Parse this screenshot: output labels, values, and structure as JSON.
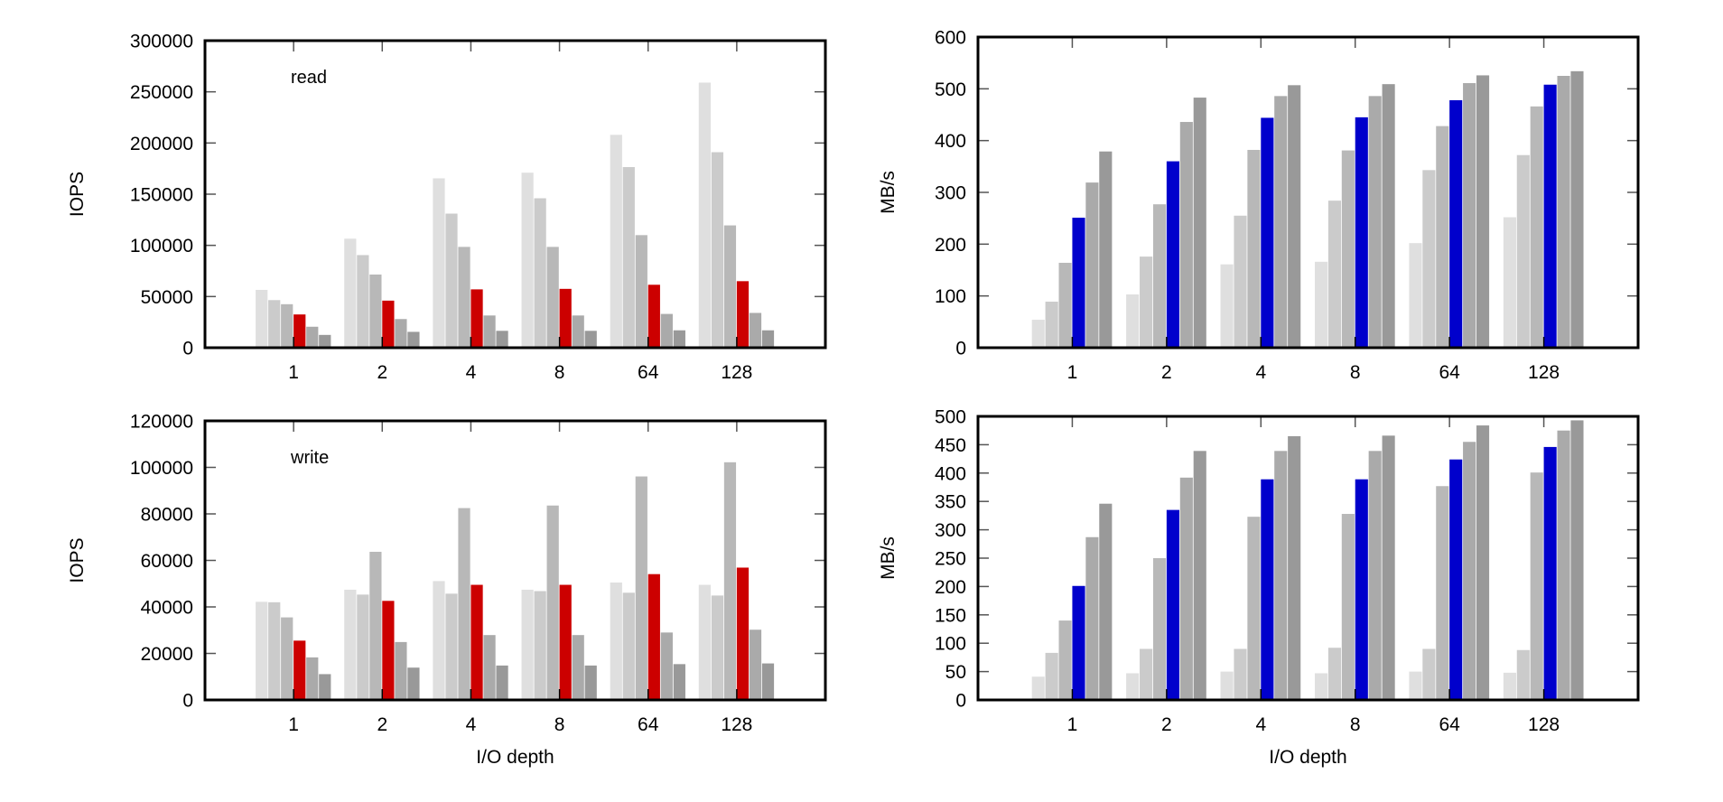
{
  "bar_colors": [
    "#dfdfdf",
    "#cbcbcb",
    "#b8b8b8",
    "HIGHLIGHT",
    "#aaaaaa",
    "#999999"
  ],
  "chart_data": [
    {
      "id": "read-iops",
      "type": "bar",
      "title": "",
      "annotation": "read",
      "xlabel": "",
      "ylabel": "IOPS",
      "ylim": [
        0,
        300000
      ],
      "yticks": [
        "0",
        "50000",
        "100000",
        "150000",
        "200000",
        "250000",
        "300000"
      ],
      "ytick_values": [
        0,
        50000,
        100000,
        150000,
        200000,
        250000,
        300000
      ],
      "categories": [
        "1",
        "2",
        "4",
        "8",
        "64",
        "128"
      ],
      "highlight_color": "#cc0000",
      "highlight_index": 3,
      "grid": false,
      "series": [
        {
          "name": "series-1",
          "values": [
            56500,
            106500,
            165500,
            171000,
            208000,
            259000
          ]
        },
        {
          "name": "series-2",
          "values": [
            46500,
            90500,
            131000,
            146000,
            176500,
            191000
          ]
        },
        {
          "name": "series-3",
          "values": [
            42500,
            71500,
            98500,
            98500,
            110000,
            119500
          ]
        },
        {
          "name": "series-4",
          "values": [
            32500,
            46000,
            57000,
            57500,
            61500,
            65000
          ]
        },
        {
          "name": "series-5",
          "values": [
            20500,
            28000,
            31500,
            31500,
            33000,
            34000
          ]
        },
        {
          "name": "series-6",
          "values": [
            12500,
            15500,
            16500,
            16500,
            17000,
            17000
          ]
        }
      ]
    },
    {
      "id": "read-mbps",
      "type": "bar",
      "title": "",
      "annotation": "",
      "xlabel": "",
      "ylabel": "MB/s",
      "ylim": [
        0,
        600
      ],
      "yticks": [
        "0",
        "100",
        "200",
        "300",
        "400",
        "500",
        "600"
      ],
      "ytick_values": [
        0,
        100,
        200,
        300,
        400,
        500,
        600
      ],
      "categories": [
        "1",
        "2",
        "4",
        "8",
        "64",
        "128"
      ],
      "highlight_color": "#0000cc",
      "highlight_index": 3,
      "grid": false,
      "series": [
        {
          "name": "series-1",
          "values": [
            54,
            103,
            161,
            166,
            202,
            252
          ]
        },
        {
          "name": "series-2",
          "values": [
            89,
            176,
            255,
            284,
            343,
            372
          ]
        },
        {
          "name": "series-3",
          "values": [
            164,
            277,
            382,
            381,
            428,
            466
          ]
        },
        {
          "name": "series-4",
          "values": [
            251,
            360,
            444,
            445,
            478,
            508
          ]
        },
        {
          "name": "series-5",
          "values": [
            319,
            436,
            486,
            486,
            511,
            525
          ]
        },
        {
          "name": "series-6",
          "values": [
            379,
            483,
            507,
            509,
            526,
            534
          ]
        }
      ]
    },
    {
      "id": "write-iops",
      "type": "bar",
      "title": "",
      "annotation": "write",
      "xlabel": "I/O depth",
      "ylabel": "IOPS",
      "ylim": [
        0,
        120000
      ],
      "yticks": [
        "0",
        "20000",
        "40000",
        "60000",
        "80000",
        "100000",
        "120000"
      ],
      "ytick_values": [
        0,
        20000,
        40000,
        60000,
        80000,
        100000,
        120000
      ],
      "categories": [
        "1",
        "2",
        "4",
        "8",
        "64",
        "128"
      ],
      "highlight_color": "#cc0000",
      "highlight_index": 3,
      "grid": false,
      "series": [
        {
          "name": "series-1",
          "values": [
            42200,
            47400,
            51100,
            47400,
            50500,
            49500
          ]
        },
        {
          "name": "series-2",
          "values": [
            42000,
            45300,
            45700,
            46800,
            46100,
            44900
          ]
        },
        {
          "name": "series-3",
          "values": [
            35500,
            63700,
            82500,
            83600,
            96100,
            102200
          ]
        },
        {
          "name": "series-4",
          "values": [
            25500,
            42600,
            49500,
            49500,
            54100,
            56900
          ]
        },
        {
          "name": "series-5",
          "values": [
            18300,
            24900,
            27900,
            27900,
            29000,
            30200
          ]
        },
        {
          "name": "series-6",
          "values": [
            11100,
            13900,
            14800,
            14800,
            15400,
            15700
          ]
        }
      ]
    },
    {
      "id": "write-mbps",
      "type": "bar",
      "title": "",
      "annotation": "",
      "xlabel": "I/O depth",
      "ylabel": "MB/s",
      "ylim": [
        0,
        500
      ],
      "yticks": [
        "0",
        "50",
        "100",
        "150",
        "200",
        "250",
        "300",
        "350",
        "400",
        "450",
        "500"
      ],
      "ytick_values": [
        0,
        50,
        100,
        150,
        200,
        250,
        300,
        350,
        400,
        450,
        500
      ],
      "categories": [
        "1",
        "2",
        "4",
        "8",
        "64",
        "128"
      ],
      "highlight_color": "#0000cc",
      "highlight_index": 3,
      "grid": false,
      "series": [
        {
          "name": "series-1",
          "values": [
            41,
            47,
            50,
            47,
            50,
            48
          ]
        },
        {
          "name": "series-2",
          "values": [
            83,
            90,
            90,
            92,
            90,
            88
          ]
        },
        {
          "name": "series-3",
          "values": [
            140,
            250,
            323,
            328,
            377,
            401
          ]
        },
        {
          "name": "series-4",
          "values": [
            201,
            335,
            389,
            389,
            424,
            446
          ]
        },
        {
          "name": "series-5",
          "values": [
            287,
            392,
            439,
            439,
            455,
            475
          ]
        },
        {
          "name": "series-6",
          "values": [
            346,
            439,
            465,
            466,
            484,
            493
          ]
        }
      ]
    }
  ]
}
